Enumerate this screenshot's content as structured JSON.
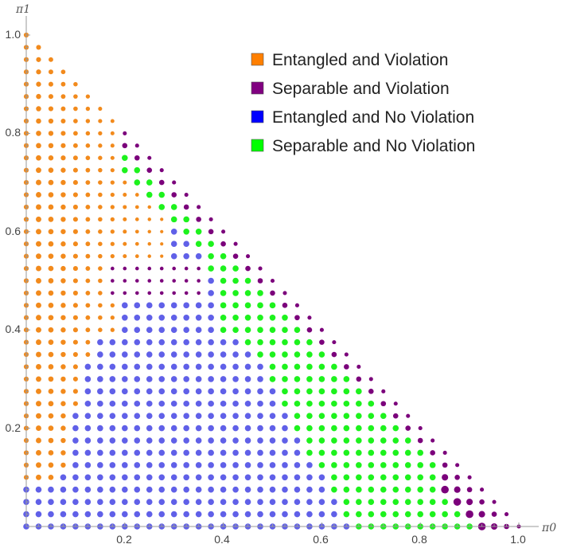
{
  "chart_data": {
    "type": "scatter",
    "xlabel": "π0",
    "ylabel": "π1",
    "xlim": [
      0,
      1.0
    ],
    "ylim": [
      0,
      1.0
    ],
    "x_ticks": [
      "0.2",
      "0.4",
      "0.6",
      "0.8",
      "1.0"
    ],
    "y_ticks": [
      "0.2",
      "0.4",
      "0.6",
      "0.8",
      "1.0"
    ],
    "grid": false,
    "legend_position": "top-right",
    "grid_step": 0.025,
    "series": [
      {
        "name": "Entangled and Violation",
        "color": "#F28A1C"
      },
      {
        "name": "Separable and Violation",
        "color": "#7B007B"
      },
      {
        "name": "Entangled and No Violation",
        "color": "#6060E8"
      },
      {
        "name": "Separable and No Violation",
        "color": "#1DF21D"
      }
    ],
    "legend_swatch_colors": [
      "#FF7F00",
      "#800080",
      "#0000FF",
      "#00FF00"
    ]
  }
}
